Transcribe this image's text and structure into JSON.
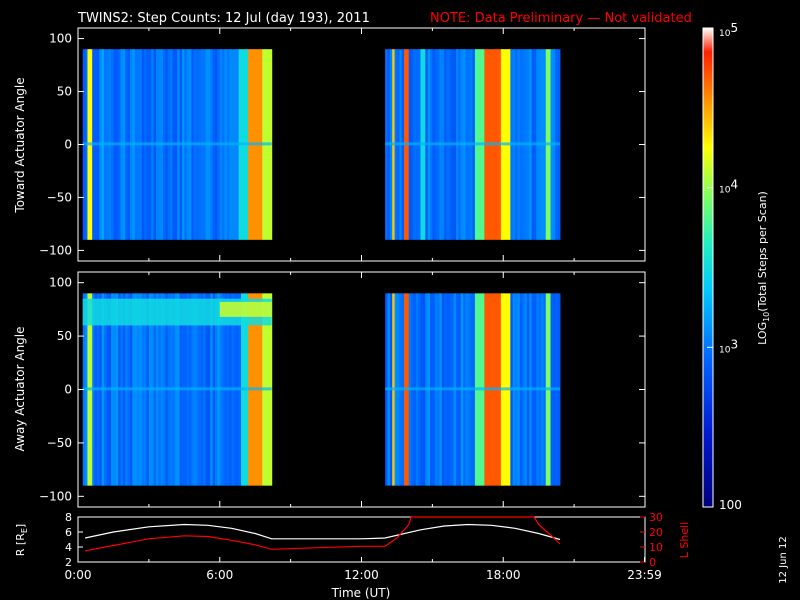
{
  "header": {
    "title": "TWINS2: Step Counts: 12 Jul (day 193), 2011",
    "note": "NOTE: Data Preliminary — Not validated"
  },
  "side_date": "12 Jun 12",
  "colors": {
    "background": "#000000",
    "axes": "#ffffff",
    "note": "#ff0000",
    "r_line": "#ffffff",
    "lshell_line": "#ff0000"
  },
  "chart_data": [
    {
      "type": "heatmap",
      "title": "",
      "ylabel": "Toward Actuator Angle",
      "ylim": [
        -110,
        110
      ],
      "yticks": [
        "100",
        "50",
        "0",
        "−50",
        "−100"
      ],
      "xlim_hours": [
        0,
        24
      ],
      "data_blocks_hours": [
        [
          0.2,
          8.2
        ],
        [
          13.0,
          20.4
        ]
      ],
      "angle_range": [
        -90,
        90
      ],
      "bright_bands": [
        {
          "start_h": 0.45,
          "end_h": 0.6,
          "level": 0.75
        },
        {
          "start_h": 1.0,
          "end_h": 1.1,
          "level": 0.4
        },
        {
          "start_h": 6.8,
          "end_h": 7.2,
          "level": 0.5
        },
        {
          "start_h": 7.2,
          "end_h": 7.8,
          "level": 0.85
        },
        {
          "start_h": 7.8,
          "end_h": 8.2,
          "level": 0.7
        },
        {
          "start_h": 13.3,
          "end_h": 13.4,
          "level": 0.8
        },
        {
          "start_h": 13.8,
          "end_h": 14.0,
          "level": 0.9
        },
        {
          "start_h": 14.5,
          "end_h": 14.7,
          "level": 0.5
        },
        {
          "start_h": 16.8,
          "end_h": 17.2,
          "level": 0.6
        },
        {
          "start_h": 17.2,
          "end_h": 17.9,
          "level": 0.9
        },
        {
          "start_h": 17.9,
          "end_h": 18.3,
          "level": 0.75
        },
        {
          "start_h": 19.8,
          "end_h": 20.0,
          "level": 0.65
        }
      ]
    },
    {
      "type": "heatmap",
      "title": "",
      "ylabel": "Away Actuator Angle",
      "ylim": [
        -110,
        110
      ],
      "yticks": [
        "100",
        "50",
        "0",
        "−50",
        "−100"
      ],
      "xlim_hours": [
        0,
        24
      ],
      "data_blocks_hours": [
        [
          0.2,
          8.2
        ],
        [
          13.0,
          20.4
        ]
      ],
      "angle_range": [
        -90,
        90
      ],
      "high_angle_band": {
        "from_angle": 60,
        "to_angle": 85,
        "start_h": 0.2,
        "end_h": 8.2,
        "level": 0.5
      },
      "bright_bands": [
        {
          "start_h": 0.45,
          "end_h": 0.6,
          "level": 0.7
        },
        {
          "start_h": 6.9,
          "end_h": 7.2,
          "level": 0.5
        },
        {
          "start_h": 7.2,
          "end_h": 7.8,
          "level": 0.85
        },
        {
          "start_h": 7.8,
          "end_h": 8.2,
          "level": 0.7
        },
        {
          "start_h": 13.3,
          "end_h": 13.4,
          "level": 0.8
        },
        {
          "start_h": 13.8,
          "end_h": 14.0,
          "level": 0.9
        },
        {
          "start_h": 16.8,
          "end_h": 17.2,
          "level": 0.6
        },
        {
          "start_h": 17.2,
          "end_h": 17.9,
          "level": 0.9
        },
        {
          "start_h": 17.9,
          "end_h": 18.3,
          "level": 0.75
        },
        {
          "start_h": 19.8,
          "end_h": 20.0,
          "level": 0.65
        }
      ]
    },
    {
      "type": "line",
      "ylabel_left": "R [R",
      "ylabel_left_sub": "E",
      "ylabel_left_end": "]",
      "ylabel_right": "L Shell",
      "ylim_left": [
        2,
        8
      ],
      "yticks_left": [
        "8",
        "6",
        "4",
        "2"
      ],
      "ylim_right": [
        0,
        30
      ],
      "yticks_right": [
        "30",
        "20",
        "10",
        "0"
      ],
      "xlabel": "Time (UT)",
      "xticks": [
        "0:00",
        "6:00",
        "12:00",
        "18:00",
        "23:59"
      ],
      "xtick_hours": [
        0,
        6,
        12,
        18,
        23.98
      ],
      "series": [
        {
          "x": [
            0.3,
            1.5,
            3.0,
            4.5,
            5.5,
            6.5,
            7.5,
            8.2,
            10,
            12,
            13.0,
            14.5,
            15.5,
            16.5,
            17.5,
            18.5,
            19.5,
            20.4
          ],
          "y": [
            5.2,
            6.0,
            6.7,
            7.0,
            6.9,
            6.5,
            5.8,
            5.1,
            5.1,
            5.1,
            5.2,
            6.3,
            6.8,
            7.0,
            6.9,
            6.5,
            5.8,
            5.0
          ],
          "axis": "left"
        },
        {
          "x": [
            0.3,
            1.5,
            3.0,
            4.5,
            5.5,
            6.5,
            7.5,
            8.2,
            10,
            12,
            13.0,
            13.5,
            14.0,
            14.1,
            19.3,
            19.5,
            20.0,
            20.4
          ],
          "y": [
            7.5,
            11,
            15.5,
            17.5,
            17,
            14.5,
            11.5,
            8.5,
            9.5,
            10.5,
            10.5,
            16,
            25,
            31,
            31,
            25,
            18,
            12
          ],
          "axis": "right"
        }
      ]
    }
  ],
  "colorbar": {
    "label": "LOG",
    "label_sub": "10",
    "label_rest": "(Total Steps per Scan)",
    "ticks": [
      {
        "base": "10",
        "exp": "5",
        "value": 100000
      },
      {
        "base": "10",
        "exp": "4",
        "value": 10000
      },
      {
        "base": "10",
        "exp": "3",
        "value": 1000
      },
      {
        "base": "100",
        "exp": "",
        "value": 100
      }
    ]
  }
}
